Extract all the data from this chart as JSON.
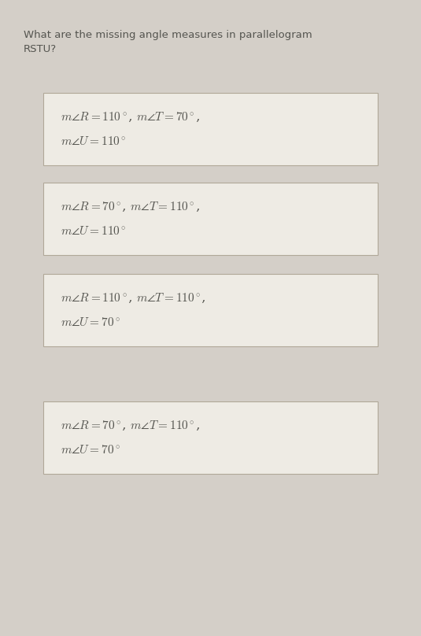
{
  "question_line1": "What are the missing angle measures in parallelogram",
  "question_line2": "RSTU?",
  "background_color": "#d4cfc8",
  "box_facecolor": "#eeebe4",
  "box_edgecolor": "#b0a898",
  "text_color": "#555550",
  "options": [
    {
      "line1": "$m\\angle R = 110^\\circ$, $m\\angle T = 70^\\circ$,",
      "line2": "$m\\angle U = 110^\\circ$"
    },
    {
      "line1": "$m\\angle R = 70^\\circ$, $m\\angle T = 110^\\circ$,",
      "line2": "$m\\angle U = 110^\\circ$"
    },
    {
      "line1": "$m\\angle R = 110^\\circ$, $m\\angle T = 110^\\circ$,",
      "line2": "$m\\angle U = 70^\\circ$"
    },
    {
      "line1": "$m\\angle R = 70^\\circ$, $m\\angle T = 110^\\circ$,",
      "line2": "$m\\angle U = 70^\\circ$"
    }
  ],
  "question_fontsize": 9.5,
  "option_fontsize": 11,
  "fig_width": 5.35,
  "fig_height": 8.08,
  "dpi": 100
}
